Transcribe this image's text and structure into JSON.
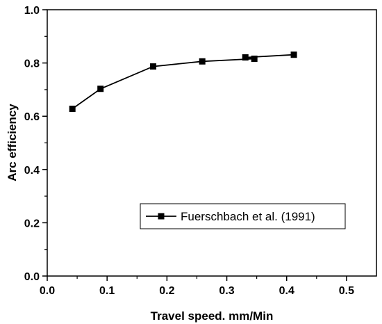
{
  "chart_data": {
    "type": "line",
    "title": "",
    "xlabel": "Travel speed. mm/Min",
    "ylabel": "Arc efficiency",
    "xlim": [
      0.0,
      0.55
    ],
    "ylim": [
      0.0,
      1.0
    ],
    "x_ticks": [
      0.0,
      0.1,
      0.2,
      0.3,
      0.4,
      0.5
    ],
    "x_tick_labels": [
      "0.0",
      "0.1",
      "0.2",
      "0.3",
      "0.4",
      "0.5"
    ],
    "y_ticks": [
      0.0,
      0.2,
      0.4,
      0.6,
      0.8,
      1.0
    ],
    "y_tick_labels": [
      "0.0",
      "0.2",
      "0.4",
      "0.6",
      "0.8",
      "1.0"
    ],
    "grid": false,
    "legend_position": "lower-right",
    "series": [
      {
        "name": "Fuerschbach et al. (1991)",
        "marker": "square",
        "color": "#000000",
        "x": [
          0.042,
          0.089,
          0.177,
          0.259,
          0.346,
          0.331,
          0.412
        ],
        "y": [
          0.628,
          0.703,
          0.787,
          0.806,
          0.816,
          0.821,
          0.831
        ]
      }
    ]
  }
}
